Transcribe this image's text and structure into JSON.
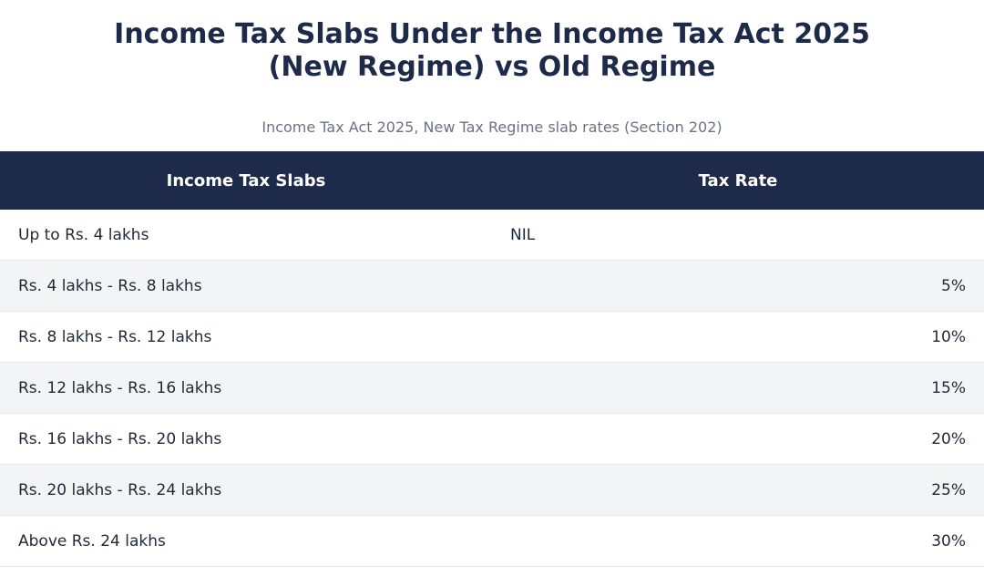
{
  "title_line1": "Income Tax Slabs Under the Income Tax Act 2025",
  "title_line2": "(New Regime) vs Old Regime",
  "subtitle": "Income Tax Act 2025, New Tax Regime slab rates (Section 202)",
  "table": {
    "headers": [
      "Income Tax Slabs",
      "Tax Rate"
    ],
    "rows": [
      {
        "slab": "Up to Rs. 4 lakhs",
        "rate": "NIL"
      },
      {
        "slab": "Rs. 4 lakhs - Rs. 8 lakhs",
        "rate": "5%"
      },
      {
        "slab": "Rs. 8 lakhs - Rs. 12 lakhs",
        "rate": "10%"
      },
      {
        "slab": "Rs. 12 lakhs - Rs. 16 lakhs",
        "rate": "15%"
      },
      {
        "slab": "Rs. 16 lakhs - Rs. 20 lakhs",
        "rate": "20%"
      },
      {
        "slab": "Rs. 20 lakhs - Rs. 24 lakhs",
        "rate": "25%"
      },
      {
        "slab": "Above Rs. 24 lakhs",
        "rate": "30%"
      }
    ]
  },
  "colors": {
    "header_bg": "#1e2a4a",
    "title": "#1e2a4a",
    "stripe": "#f3f4f6"
  }
}
